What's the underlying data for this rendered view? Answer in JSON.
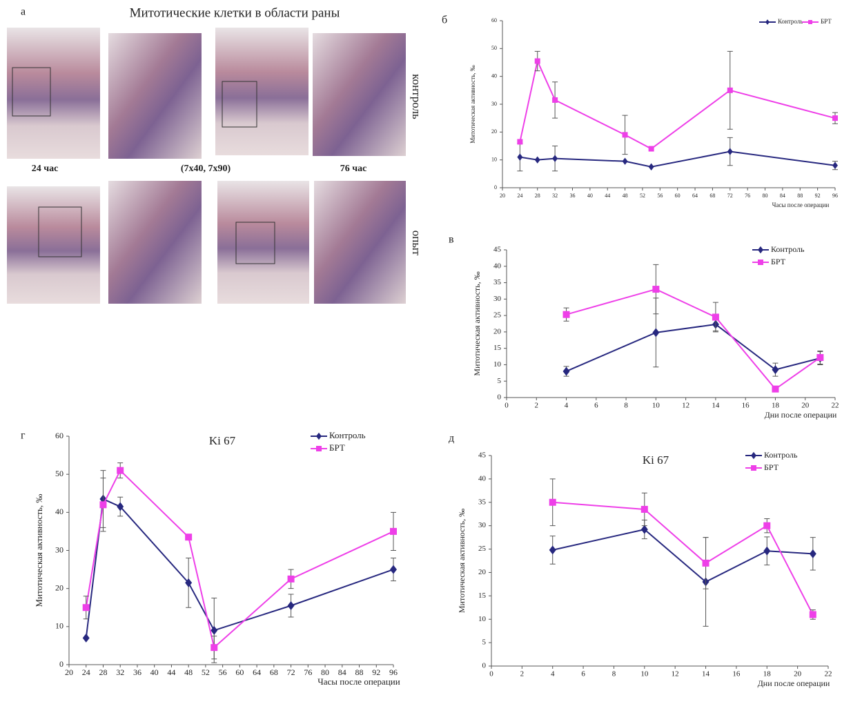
{
  "panel_a": {
    "panel": "а",
    "title": "Митотические клетки в области раны",
    "label_left": "24 час",
    "label_center": "(7x40, 7x90)",
    "label_right": "76 час",
    "row_top": "контроль",
    "row_bottom": "опыт"
  },
  "chart_data": [
    {
      "type": "line",
      "panel": "б",
      "x_label": "Часы после операции",
      "y_label": "Митотическая активность, ‰",
      "x": [
        24,
        28,
        32,
        48,
        54,
        72,
        96
      ],
      "xlim": [
        20,
        96
      ],
      "xticks": [
        20,
        24,
        28,
        32,
        36,
        40,
        44,
        48,
        52,
        56,
        60,
        64,
        68,
        72,
        76,
        80,
        84,
        88,
        92,
        96
      ],
      "ylim": [
        0,
        60
      ],
      "yticks": [
        0,
        10,
        20,
        30,
        40,
        50,
        60
      ],
      "legend": "upper-right",
      "series": [
        {
          "name": "Контроль",
          "color": "#27287f",
          "marker": "diamond",
          "values": [
            11,
            10,
            10.5,
            9.5,
            7.5,
            13,
            8
          ],
          "errors": [
            5,
            null,
            4.5,
            null,
            null,
            5,
            1.5
          ]
        },
        {
          "name": "БРТ",
          "color": "#ee3fe8",
          "marker": "square",
          "values": [
            16.5,
            45.5,
            31.5,
            19,
            14,
            35,
            25
          ],
          "errors": [
            null,
            3.5,
            6.5,
            7,
            null,
            14,
            2
          ]
        }
      ]
    },
    {
      "type": "line",
      "panel": "в",
      "x_label": "Дни после операции",
      "y_label": "Митотическая активность, ‰",
      "x": [
        4,
        10,
        14,
        18,
        21
      ],
      "xlim": [
        0,
        22
      ],
      "xticks": [
        0,
        2,
        4,
        6,
        8,
        10,
        12,
        14,
        16,
        18,
        20,
        22
      ],
      "ylim": [
        0,
        45
      ],
      "yticks": [
        0,
        5,
        10,
        15,
        20,
        25,
        30,
        35,
        40,
        45
      ],
      "legend": "upper-right",
      "series": [
        {
          "name": "Контроль",
          "color": "#27287f",
          "marker": "diamond",
          "values": [
            8,
            19.8,
            22.3,
            8.5,
            12
          ],
          "errors": [
            1.5,
            10.5,
            2,
            2,
            2
          ]
        },
        {
          "name": "БРТ",
          "color": "#ee3fe8",
          "marker": "square",
          "values": [
            25.3,
            33,
            24.5,
            2.6,
            12.2
          ],
          "errors": [
            2,
            7.5,
            4.5,
            null,
            2
          ]
        }
      ]
    },
    {
      "type": "line",
      "panel": "г",
      "title": "Ki 67",
      "x_label": "Часы после операции",
      "y_label": "Митотическая активность, ‰",
      "x": [
        24,
        28,
        32,
        48,
        54,
        72,
        96
      ],
      "xlim": [
        20,
        96
      ],
      "xticks": [
        20,
        24,
        28,
        32,
        36,
        40,
        44,
        48,
        52,
        56,
        60,
        64,
        68,
        72,
        76,
        80,
        84,
        88,
        92,
        96
      ],
      "ylim": [
        0,
        60
      ],
      "yticks": [
        0,
        10,
        20,
        30,
        40,
        50,
        60
      ],
      "legend": "upper-right",
      "series": [
        {
          "name": "Контроль",
          "color": "#27287f",
          "marker": "diamond",
          "values": [
            7,
            43.5,
            41.5,
            21.5,
            9,
            15.5,
            25
          ],
          "errors": [
            null,
            7.5,
            2.5,
            6.5,
            8.5,
            3,
            3
          ]
        },
        {
          "name": "БРТ",
          "color": "#ee3fe8",
          "marker": "square",
          "values": [
            15,
            42,
            51,
            33.5,
            4.5,
            22.5,
            35
          ],
          "errors": [
            3,
            7,
            2,
            null,
            3,
            2.5,
            5
          ]
        }
      ]
    },
    {
      "type": "line",
      "panel": "д",
      "title": "Ki 67",
      "x_label": "Дни после операции",
      "y_label": "Митотическая активность, ‰",
      "x": [
        4,
        10,
        14,
        18,
        21
      ],
      "xlim": [
        0,
        22
      ],
      "xticks": [
        0,
        2,
        4,
        6,
        8,
        10,
        12,
        14,
        16,
        18,
        20,
        22
      ],
      "ylim": [
        0,
        45
      ],
      "yticks": [
        0,
        5,
        10,
        15,
        20,
        25,
        30,
        35,
        40,
        45
      ],
      "legend": "upper-right",
      "series": [
        {
          "name": "Контроль",
          "color": "#27287f",
          "marker": "diamond",
          "values": [
            24.8,
            29.2,
            18,
            24.6,
            24
          ],
          "errors": [
            3,
            2,
            9.5,
            3,
            3.5
          ]
        },
        {
          "name": "БРТ",
          "color": "#ee3fe8",
          "marker": "square",
          "values": [
            35,
            33.5,
            22,
            30,
            11
          ],
          "errors": [
            5,
            3.5,
            5.5,
            1.5,
            1
          ]
        }
      ]
    }
  ]
}
